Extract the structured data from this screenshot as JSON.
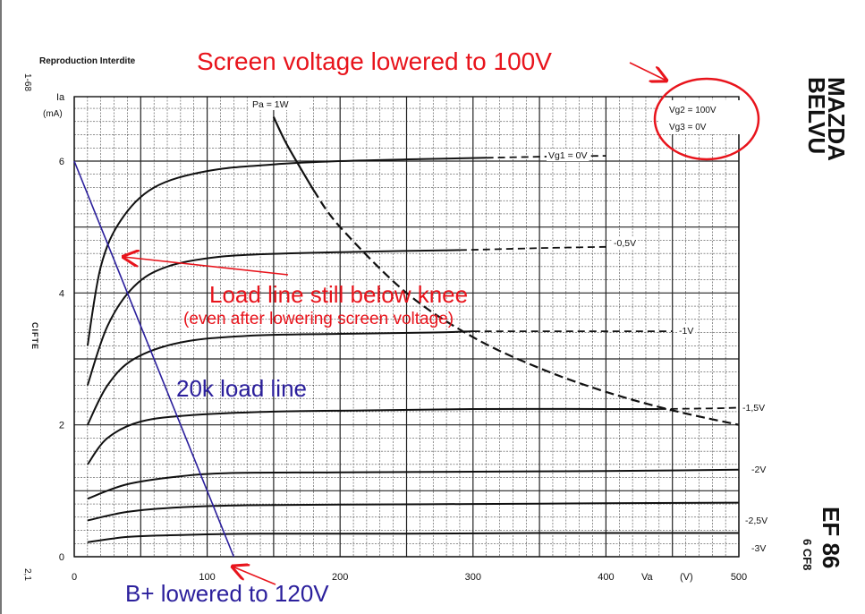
{
  "header": {
    "reproduction_note": "Reproduction Interdite",
    "doc_code_top": "1-68",
    "doc_code_bottom": "2,1",
    "side_label": "CIFTE"
  },
  "brand": {
    "name_line1": "MAZDA",
    "name_line2": "BELVU"
  },
  "tube": {
    "model": "EF 86",
    "equivalent": "6 CF8"
  },
  "chart_data": {
    "type": "line",
    "ylabel_symbol": "Ia",
    "ylabel_unit": "(mA)",
    "xlabel_symbol": "Va",
    "xlabel_unit": "(V)",
    "xlim": [
      0,
      500
    ],
    "ylim": [
      0,
      7.0
    ],
    "x_ticks": [
      0,
      100,
      200,
      300,
      400,
      500
    ],
    "x_tick_labels": [
      "0",
      "100",
      "200",
      "300",
      "400",
      "500"
    ],
    "y_ticks": [
      0,
      2,
      4,
      6
    ],
    "y_tick_labels": [
      "0",
      "2",
      "4",
      "6"
    ],
    "grid": true,
    "conditions": {
      "vg2": "Vg2 = 100V",
      "vg3": "Vg3 =    0V"
    },
    "series": [
      {
        "name": "Vg1 = 0V",
        "style": "solid",
        "points": [
          [
            10,
            3.2
          ],
          [
            20,
            4.4
          ],
          [
            35,
            5.1
          ],
          [
            60,
            5.6
          ],
          [
            100,
            5.85
          ],
          [
            150,
            5.95
          ],
          [
            200,
            6.0
          ],
          [
            260,
            6.03
          ],
          [
            310,
            6.05
          ]
        ],
        "dashed_points": [
          [
            310,
            6.05
          ],
          [
            360,
            6.07
          ],
          [
            400,
            6.08
          ]
        ]
      },
      {
        "name": "-0,5V",
        "style": "solid",
        "points": [
          [
            10,
            2.6
          ],
          [
            25,
            3.5
          ],
          [
            45,
            4.1
          ],
          [
            70,
            4.4
          ],
          [
            110,
            4.55
          ],
          [
            160,
            4.6
          ],
          [
            230,
            4.63
          ],
          [
            290,
            4.65
          ]
        ],
        "dashed_points": [
          [
            290,
            4.65
          ],
          [
            350,
            4.68
          ],
          [
            400,
            4.7
          ]
        ]
      },
      {
        "name": "-1V",
        "style": "solid",
        "points": [
          [
            10,
            2.0
          ],
          [
            25,
            2.6
          ],
          [
            45,
            3.0
          ],
          [
            80,
            3.25
          ],
          [
            130,
            3.35
          ],
          [
            200,
            3.38
          ],
          [
            270,
            3.4
          ],
          [
            300,
            3.42
          ]
        ],
        "dashed_points": [
          [
            300,
            3.42
          ],
          [
            360,
            3.42
          ],
          [
            450,
            3.42
          ]
        ]
      },
      {
        "name": "-1,5V",
        "style": "solid",
        "points": [
          [
            10,
            1.4
          ],
          [
            25,
            1.8
          ],
          [
            50,
            2.05
          ],
          [
            90,
            2.15
          ],
          [
            150,
            2.2
          ],
          [
            220,
            2.22
          ],
          [
            300,
            2.24
          ],
          [
            400,
            2.24
          ],
          [
            440,
            2.24
          ]
        ],
        "dashed_points": [
          [
            440,
            2.24
          ],
          [
            480,
            2.25
          ],
          [
            500,
            2.26
          ]
        ]
      },
      {
        "name": "-2V",
        "style": "solid",
        "points": [
          [
            10,
            0.88
          ],
          [
            40,
            1.1
          ],
          [
            80,
            1.22
          ],
          [
            120,
            1.27
          ],
          [
            200,
            1.28
          ],
          [
            300,
            1.29
          ],
          [
            400,
            1.3
          ],
          [
            500,
            1.32
          ]
        ]
      },
      {
        "name": "-2,5V",
        "style": "solid",
        "points": [
          [
            10,
            0.55
          ],
          [
            40,
            0.68
          ],
          [
            80,
            0.75
          ],
          [
            130,
            0.78
          ],
          [
            200,
            0.79
          ],
          [
            300,
            0.8
          ],
          [
            400,
            0.81
          ],
          [
            500,
            0.82
          ]
        ]
      },
      {
        "name": "-3V",
        "style": "solid",
        "points": [
          [
            10,
            0.22
          ],
          [
            40,
            0.3
          ],
          [
            80,
            0.33
          ],
          [
            140,
            0.35
          ],
          [
            250,
            0.35
          ],
          [
            350,
            0.36
          ],
          [
            500,
            0.36
          ]
        ]
      }
    ],
    "power_curve": {
      "name": "Pa = 1W",
      "points": [
        [
          150,
          6.67
        ],
        [
          160,
          6.25
        ],
        [
          180,
          5.56
        ],
        [
          200,
          5.0
        ],
        [
          250,
          4.0
        ],
        [
          300,
          3.33
        ],
        [
          350,
          2.86
        ],
        [
          400,
          2.5
        ],
        [
          450,
          2.22
        ],
        [
          500,
          2.0
        ]
      ]
    },
    "load_line": {
      "name": "20k load line",
      "points": [
        [
          0,
          6.0
        ],
        [
          120,
          0.0
        ]
      ]
    },
    "annotations": {
      "screen_voltage": "Screen voltage lowered to 100V",
      "knee_line1": "Load line still below knee",
      "knee_line2": "(even after lowering screen voltage)",
      "load_line_label": "20k load line",
      "bplus": "B+ lowered to 120V"
    },
    "colors": {
      "red": "#e8141c",
      "blue": "#2b1f9c",
      "ink": "#111111",
      "grid": "#222222"
    }
  }
}
